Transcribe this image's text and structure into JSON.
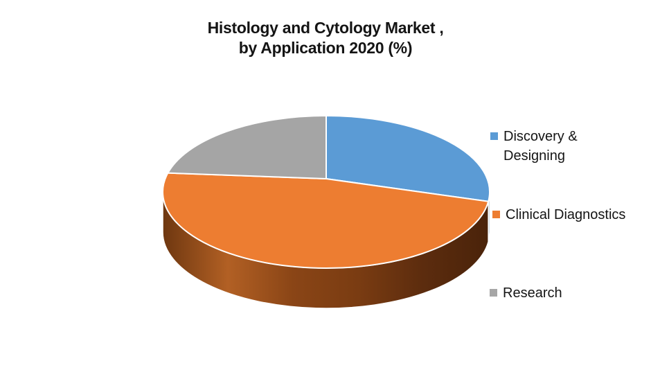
{
  "canvas": {
    "background": "#FFFFFF"
  },
  "chart_data": {
    "type": "pie",
    "style": "3d",
    "title": "Histology and Cytology Market , by Application 2020 (%)",
    "title_lines": [
      "Histology and Cytology Market ,",
      "by Application 2020 (%)"
    ],
    "categories": [
      "Discovery & Designing",
      "Clinical Diagnostics",
      "Research"
    ],
    "values": [
      27,
      52,
      21
    ],
    "unit": "%",
    "colors": [
      "#5B9BD5",
      "#ED7D31",
      "#A5A5A5"
    ],
    "side_styles": [
      {
        "color": "#41719C"
      },
      {
        "gradient": [
          "#6E3710",
          "#B26024",
          "#8A4516",
          "#7A3C12",
          "#5C2C0E",
          "#4A230A"
        ]
      },
      null
    ],
    "outline_color": "#FFFFFF",
    "start_angle_deg": 0,
    "direction": "clockwise",
    "legend_position": "right",
    "legend": [
      {
        "label": "Discovery & Designing",
        "color": "#5B9BD5"
      },
      {
        "label": "Clinical Diagnostics",
        "color": "#ED7D31"
      },
      {
        "label": "Research",
        "color": "#A6A6A6"
      }
    ]
  }
}
